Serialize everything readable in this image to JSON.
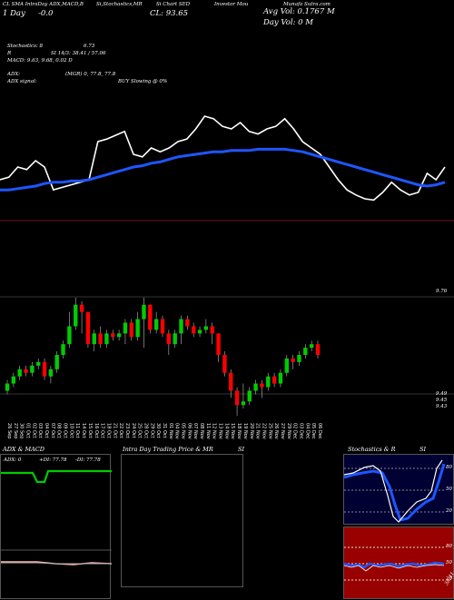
{
  "header": {
    "line1_left": "CL  SMA  IntraDay  ADX,MACD,B",
    "line1_mid": "Si,Stochastics,MR",
    "line1_right": "Si Chart SED",
    "line1_far": "Investor  Mou",
    "line1_site": "Munafa Sutra.com",
    "line2_left": "1 Day",
    "line2_change": "-0.0",
    "close": "CL: 93.65",
    "avg_vol": "Avg Vol: 0.1767 M",
    "day_vol": "Day Vol: 0   M",
    "stochastics": "Stochastics: 8",
    "stoch_val": "6.73",
    "rsi": "R",
    "si": "SI 14/3: 38.41 / 57.06",
    "macd": "MACD: 9.63, 9.68, 0.02  D",
    "adx": "ADX:",
    "adx_vals": "(MGR) 0, 77.8, 77.8",
    "adx_signal": "ADX  signal:",
    "buy": "BUY Slowing @ 0%"
  },
  "price_axis": {
    "top_label": "9.76",
    "bottom_label1": "9.49",
    "bottom_label2": "9.45",
    "bottom_label3": "9.43"
  },
  "x_ticks": [
    "26 Sep",
    "27 Sep",
    "30 Sep",
    "01 Oct",
    "02 Oct",
    "03 Oct",
    "04 Oct",
    "07 Oct",
    "08 Oct",
    "09 Oct",
    "10 Oct",
    "11 Oct",
    "14 Oct",
    "15 Oct",
    "16 Oct",
    "17 Oct",
    "18 Oct",
    "21 Oct",
    "22 Oct",
    "23 Oct",
    "24 Oct",
    "25 Oct",
    "28 Oct",
    "29 Oct",
    "30 Oct",
    "31 Oct",
    "01 Nov",
    "04 Nov",
    "05 Nov",
    "06 Nov",
    "07 Nov",
    "08 Nov",
    "11 Nov",
    "12 Nov",
    "13 Nov",
    "14 Nov",
    "15 Nov",
    "18 Nov",
    "19 Nov",
    "20 Nov",
    "21 Nov",
    "22 Nov",
    "25 Nov",
    "26 Nov",
    "27 Nov",
    "29 Nov",
    "02 Dec",
    "03 Dec",
    "04 Dec",
    "05 Dec",
    "06 Dec"
  ],
  "panels": {
    "adx": {
      "title": "ADX  & MACD",
      "adx_label": "ADX: 0",
      "pdi_label": "+DI: 77.78",
      "mdi_label": "-DI: 77.78"
    },
    "intraday": {
      "title": "Intra Day Trading Price  & MR",
      "si_label": "SI"
    },
    "stoch": {
      "title": "Stochastics & R",
      "si_label": "SI",
      "levels": [
        "80",
        "50",
        "20"
      ],
      "rsi_levels": [
        "80",
        "50",
        "20"
      ],
      "rsi_right": "38.41"
    }
  },
  "colors": {
    "up": "#00cc00",
    "down": "#ff0000",
    "sma": "#1e56ff",
    "bg": "#000000",
    "stoch_bg": "#000033",
    "rsi_bg": "#990000"
  },
  "chart_data": {
    "type": "candlestick",
    "candles": [
      {
        "o": 9.5,
        "c": 9.52,
        "h": 9.53,
        "l": 9.49
      },
      {
        "o": 9.52,
        "c": 9.54,
        "h": 9.55,
        "l": 9.51
      },
      {
        "o": 9.54,
        "c": 9.56,
        "h": 9.57,
        "l": 9.53
      },
      {
        "o": 9.56,
        "c": 9.55,
        "h": 9.57,
        "l": 9.54
      },
      {
        "o": 9.55,
        "c": 9.57,
        "h": 9.58,
        "l": 9.54
      },
      {
        "o": 9.57,
        "c": 9.58,
        "h": 9.59,
        "l": 9.56
      },
      {
        "o": 9.58,
        "c": 9.54,
        "h": 9.59,
        "l": 9.53
      },
      {
        "o": 9.54,
        "c": 9.56,
        "h": 9.57,
        "l": 9.52
      },
      {
        "o": 9.56,
        "c": 9.6,
        "h": 9.61,
        "l": 9.55
      },
      {
        "o": 9.6,
        "c": 9.63,
        "h": 9.64,
        "l": 9.59
      },
      {
        "o": 9.63,
        "c": 9.68,
        "h": 9.72,
        "l": 9.62
      },
      {
        "o": 9.68,
        "c": 9.74,
        "h": 9.76,
        "l": 9.67
      },
      {
        "o": 9.74,
        "c": 9.72,
        "h": 9.75,
        "l": 9.66
      },
      {
        "o": 9.72,
        "c": 9.63,
        "h": 9.72,
        "l": 9.62
      },
      {
        "o": 9.63,
        "c": 9.66,
        "h": 9.67,
        "l": 9.61
      },
      {
        "o": 9.66,
        "c": 9.63,
        "h": 9.68,
        "l": 9.62
      },
      {
        "o": 9.63,
        "c": 9.66,
        "h": 9.67,
        "l": 9.62
      },
      {
        "o": 9.66,
        "c": 9.65,
        "h": 9.67,
        "l": 9.64
      },
      {
        "o": 9.65,
        "c": 9.66,
        "h": 9.67,
        "l": 9.64
      },
      {
        "o": 9.66,
        "c": 9.69,
        "h": 9.7,
        "l": 9.63
      },
      {
        "o": 9.69,
        "c": 9.65,
        "h": 9.7,
        "l": 9.64
      },
      {
        "o": 9.65,
        "c": 9.7,
        "h": 9.72,
        "l": 9.64
      },
      {
        "o": 9.7,
        "c": 9.74,
        "h": 9.76,
        "l": 9.62
      },
      {
        "o": 9.74,
        "c": 9.67,
        "h": 9.74,
        "l": 9.66
      },
      {
        "o": 9.67,
        "c": 9.7,
        "h": 9.72,
        "l": 9.66
      },
      {
        "o": 9.7,
        "c": 9.66,
        "h": 9.71,
        "l": 9.65
      },
      {
        "o": 9.66,
        "c": 9.63,
        "h": 9.67,
        "l": 9.6
      },
      {
        "o": 9.63,
        "c": 9.66,
        "h": 9.67,
        "l": 9.62
      },
      {
        "o": 9.66,
        "c": 9.7,
        "h": 9.71,
        "l": 9.63
      },
      {
        "o": 9.7,
        "c": 9.68,
        "h": 9.71,
        "l": 9.67
      },
      {
        "o": 9.68,
        "c": 9.66,
        "h": 9.69,
        "l": 9.65
      },
      {
        "o": 9.66,
        "c": 9.67,
        "h": 9.68,
        "l": 9.65
      },
      {
        "o": 9.67,
        "c": 9.68,
        "h": 9.7,
        "l": 9.66
      },
      {
        "o": 9.68,
        "c": 9.66,
        "h": 9.69,
        "l": 9.63
      },
      {
        "o": 9.66,
        "c": 9.6,
        "h": 9.66,
        "l": 9.58
      },
      {
        "o": 9.6,
        "c": 9.55,
        "h": 9.61,
        "l": 9.54
      },
      {
        "o": 9.55,
        "c": 9.5,
        "h": 9.56,
        "l": 9.48
      },
      {
        "o": 9.5,
        "c": 9.46,
        "h": 9.51,
        "l": 9.43
      },
      {
        "o": 9.46,
        "c": 9.47,
        "h": 9.52,
        "l": 9.45
      },
      {
        "o": 9.47,
        "c": 9.5,
        "h": 9.51,
        "l": 9.46
      },
      {
        "o": 9.5,
        "c": 9.52,
        "h": 9.53,
        "l": 9.49
      },
      {
        "o": 9.52,
        "c": 9.51,
        "h": 9.53,
        "l": 9.48
      },
      {
        "o": 9.51,
        "c": 9.54,
        "h": 9.55,
        "l": 9.5
      },
      {
        "o": 9.54,
        "c": 9.52,
        "h": 9.55,
        "l": 9.51
      },
      {
        "o": 9.52,
        "c": 9.55,
        "h": 9.56,
        "l": 9.51
      },
      {
        "o": 9.55,
        "c": 9.59,
        "h": 9.6,
        "l": 9.54
      },
      {
        "o": 9.59,
        "c": 9.58,
        "h": 9.6,
        "l": 9.56
      },
      {
        "o": 9.58,
        "c": 9.6,
        "h": 9.61,
        "l": 9.57
      },
      {
        "o": 9.6,
        "c": 9.62,
        "h": 9.63,
        "l": 9.59
      },
      {
        "o": 9.62,
        "c": 9.63,
        "h": 9.64,
        "l": 9.61
      },
      {
        "o": 9.63,
        "c": 9.6,
        "h": 9.64,
        "l": 9.59
      }
    ],
    "stoch_line": [
      30,
      32,
      40,
      38,
      45,
      40,
      22,
      24,
      26,
      28,
      30,
      60,
      62,
      65,
      68,
      50,
      48,
      55,
      52,
      55,
      60,
      62,
      70,
      80,
      78,
      72,
      70,
      75,
      68,
      66,
      70,
      72,
      78,
      70,
      60,
      55,
      50,
      40,
      30,
      22,
      18,
      15,
      14,
      20,
      28,
      22,
      18,
      20,
      35,
      30,
      40
    ],
    "sma_line": [
      22,
      22,
      23,
      24,
      25,
      27,
      28,
      28,
      29,
      29,
      30,
      32,
      34,
      36,
      38,
      40,
      41,
      43,
      44,
      46,
      48,
      49,
      50,
      51,
      52,
      52,
      53,
      53,
      53,
      54,
      54,
      54,
      54,
      53,
      52,
      50,
      48,
      46,
      44,
      42,
      40,
      38,
      36,
      34,
      32,
      30,
      28,
      26,
      25,
      26,
      28
    ]
  }
}
